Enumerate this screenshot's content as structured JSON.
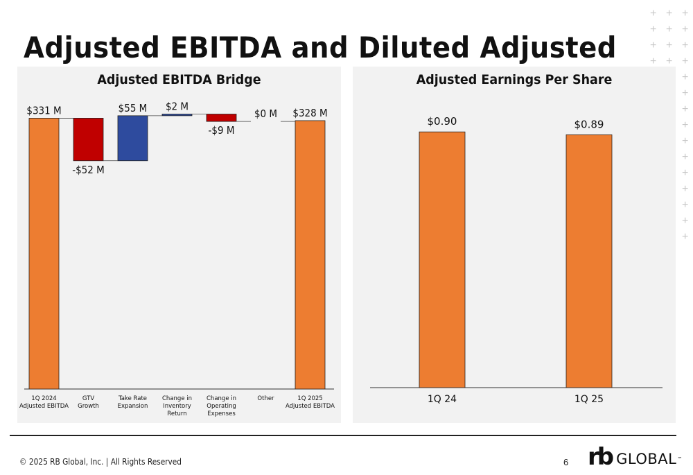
{
  "slide": {
    "title": "Adjusted EBITDA and Diluted Adjusted EPS",
    "footer": "© 2025 RB Global, Inc. | All Rights Reserved",
    "page_number": "6",
    "logo": {
      "mark": "rb",
      "word": "GLOBAL",
      "tm": "™"
    }
  },
  "colors": {
    "orange": "#ED7D31",
    "red": "#C00000",
    "blue": "#2E4B9E",
    "panel": "#F2F2F2"
  },
  "chart_data": [
    {
      "type": "bar",
      "subtype": "waterfall",
      "title": "Adjusted EBITDA Bridge",
      "unit": "$M",
      "categories": [
        [
          "1Q 2024",
          "Adjusted EBITDA"
        ],
        [
          "GTV",
          "Growth"
        ],
        [
          "Take Rate",
          "Expansion"
        ],
        [
          "Change in",
          "Inventory",
          "Return"
        ],
        [
          "Change in",
          "Operating",
          "Expenses"
        ],
        [
          "Other"
        ],
        [
          "1Q 2025",
          "Adjusted EBITDA"
        ]
      ],
      "steps": [
        {
          "kind": "total",
          "value": 331,
          "label": "$331 M"
        },
        {
          "kind": "delta",
          "value": -52,
          "label": "-$52 M"
        },
        {
          "kind": "delta",
          "value": 55,
          "label": "$55 M"
        },
        {
          "kind": "delta",
          "value": 2,
          "label": "$2 M"
        },
        {
          "kind": "delta",
          "value": -9,
          "label": "-$9 M"
        },
        {
          "kind": "delta",
          "value": 0,
          "label": "$0 M"
        },
        {
          "kind": "total",
          "value": 328,
          "label": "$328 M"
        }
      ],
      "ylim": [
        0,
        340
      ]
    },
    {
      "type": "bar",
      "title": "Adjusted Earnings Per Share",
      "categories": [
        "1Q 24",
        "1Q 25"
      ],
      "values": [
        0.9,
        0.89
      ],
      "labels": [
        "$0.90",
        "$0.89"
      ],
      "ylim": [
        0,
        0.92
      ]
    }
  ]
}
